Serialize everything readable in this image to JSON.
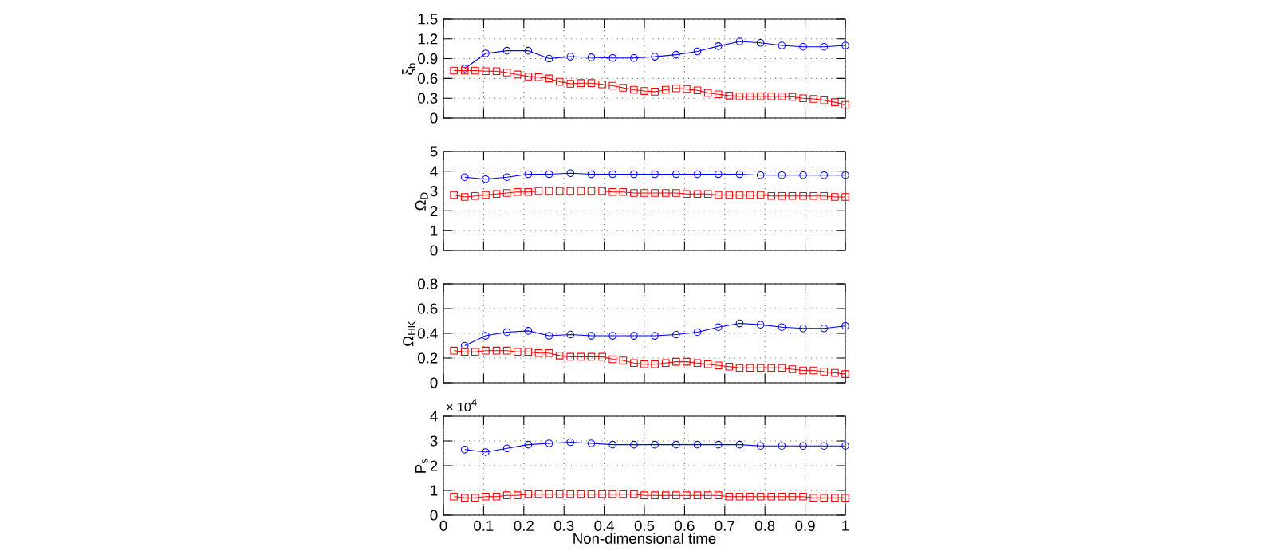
{
  "chart_data": [
    {
      "type": "line",
      "ylabel": "ξ$_{b}$",
      "xlim": [
        0,
        1
      ],
      "xticks": [
        0,
        0.1,
        0.2,
        0.3,
        0.4,
        0.5,
        0.6,
        0.7,
        0.8,
        0.9,
        1
      ],
      "ylim": [
        0,
        1.5
      ],
      "yticks": [
        0,
        0.3,
        0.6,
        0.9,
        1.2,
        1.5
      ],
      "grid": true,
      "tick_labels": "y",
      "line_style": "solid",
      "series": [
        {
          "color": "#0000ff",
          "marker": "circle",
          "x": [
            0.053,
            0.105,
            0.158,
            0.211,
            0.263,
            0.316,
            0.368,
            0.421,
            0.474,
            0.526,
            0.579,
            0.632,
            0.684,
            0.737,
            0.789,
            0.842,
            0.895,
            0.947,
            1
          ],
          "values": [
            0.75,
            0.98,
            1.02,
            1.02,
            0.9,
            0.93,
            0.92,
            0.91,
            0.91,
            0.93,
            0.96,
            1.01,
            1.09,
            1.16,
            1.14,
            1.1,
            1.08,
            1.08,
            1.1
          ]
        },
        {
          "color": "#ff0000",
          "marker": "square",
          "x": [
            0.026,
            0.053,
            0.079,
            0.105,
            0.132,
            0.158,
            0.184,
            0.211,
            0.237,
            0.263,
            0.289,
            0.316,
            0.342,
            0.368,
            0.395,
            0.421,
            0.447,
            0.474,
            0.5,
            0.526,
            0.553,
            0.579,
            0.605,
            0.632,
            0.658,
            0.684,
            0.711,
            0.737,
            0.763,
            0.789,
            0.816,
            0.842,
            0.868,
            0.895,
            0.921,
            0.947,
            0.974,
            1
          ],
          "values": [
            0.72,
            0.72,
            0.72,
            0.71,
            0.71,
            0.69,
            0.66,
            0.63,
            0.62,
            0.6,
            0.55,
            0.52,
            0.53,
            0.53,
            0.51,
            0.49,
            0.46,
            0.43,
            0.41,
            0.4,
            0.43,
            0.45,
            0.44,
            0.42,
            0.38,
            0.36,
            0.34,
            0.33,
            0.33,
            0.33,
            0.33,
            0.33,
            0.32,
            0.3,
            0.29,
            0.27,
            0.24,
            0.2
          ]
        }
      ]
    },
    {
      "type": "line",
      "ylabel": "Ω$_{D}$",
      "xlim": [
        0,
        1
      ],
      "xticks": [
        0,
        0.1,
        0.2,
        0.3,
        0.4,
        0.5,
        0.6,
        0.7,
        0.8,
        0.9,
        1
      ],
      "ylim": [
        0,
        5
      ],
      "yticks": [
        0,
        1,
        2,
        3,
        4,
        5
      ],
      "grid": true,
      "tick_labels": "y",
      "line_style": "solid",
      "series": [
        {
          "color": "#0000ff",
          "marker": "circle",
          "x": [
            0.053,
            0.105,
            0.158,
            0.211,
            0.263,
            0.316,
            0.368,
            0.421,
            0.474,
            0.526,
            0.579,
            0.632,
            0.684,
            0.737,
            0.789,
            0.842,
            0.895,
            0.947,
            1
          ],
          "values": [
            3.7,
            3.6,
            3.7,
            3.85,
            3.85,
            3.9,
            3.85,
            3.85,
            3.85,
            3.85,
            3.85,
            3.85,
            3.85,
            3.85,
            3.8,
            3.8,
            3.8,
            3.8,
            3.8
          ]
        },
        {
          "color": "#ff0000",
          "marker": "square",
          "x": [
            0.026,
            0.053,
            0.079,
            0.105,
            0.132,
            0.158,
            0.184,
            0.211,
            0.237,
            0.263,
            0.289,
            0.316,
            0.342,
            0.368,
            0.395,
            0.421,
            0.447,
            0.474,
            0.5,
            0.526,
            0.553,
            0.579,
            0.605,
            0.632,
            0.658,
            0.684,
            0.711,
            0.737,
            0.763,
            0.789,
            0.816,
            0.842,
            0.868,
            0.895,
            0.921,
            0.947,
            0.974,
            1
          ],
          "values": [
            2.8,
            2.7,
            2.75,
            2.8,
            2.85,
            2.9,
            2.95,
            2.95,
            3.0,
            3.0,
            3.0,
            3.0,
            3.0,
            3.0,
            3.0,
            2.95,
            2.95,
            2.9,
            2.9,
            2.9,
            2.9,
            2.9,
            2.85,
            2.85,
            2.85,
            2.8,
            2.8,
            2.8,
            2.8,
            2.8,
            2.75,
            2.75,
            2.75,
            2.75,
            2.75,
            2.75,
            2.7,
            2.7
          ]
        }
      ]
    },
    {
      "type": "line",
      "ylabel": "Ω$_{HK}$",
      "xlim": [
        0,
        1
      ],
      "xticks": [
        0,
        0.1,
        0.2,
        0.3,
        0.4,
        0.5,
        0.6,
        0.7,
        0.8,
        0.9,
        1
      ],
      "ylim": [
        0,
        0.8
      ],
      "yticks": [
        0,
        0.2,
        0.4,
        0.6,
        0.8
      ],
      "grid": true,
      "tick_labels": "y",
      "line_style": "solid",
      "series": [
        {
          "color": "#0000ff",
          "marker": "circle",
          "x": [
            0.053,
            0.105,
            0.158,
            0.211,
            0.263,
            0.316,
            0.368,
            0.421,
            0.474,
            0.526,
            0.579,
            0.632,
            0.684,
            0.737,
            0.789,
            0.842,
            0.895,
            0.947,
            1
          ],
          "values": [
            0.3,
            0.38,
            0.41,
            0.42,
            0.38,
            0.39,
            0.38,
            0.38,
            0.38,
            0.38,
            0.39,
            0.41,
            0.45,
            0.48,
            0.47,
            0.45,
            0.44,
            0.44,
            0.46
          ]
        },
        {
          "color": "#ff0000",
          "marker": "square",
          "x": [
            0.026,
            0.053,
            0.079,
            0.105,
            0.132,
            0.158,
            0.184,
            0.211,
            0.237,
            0.263,
            0.289,
            0.316,
            0.342,
            0.368,
            0.395,
            0.421,
            0.447,
            0.474,
            0.5,
            0.526,
            0.553,
            0.579,
            0.605,
            0.632,
            0.658,
            0.684,
            0.711,
            0.737,
            0.763,
            0.789,
            0.816,
            0.842,
            0.868,
            0.895,
            0.921,
            0.947,
            0.974,
            1
          ],
          "values": [
            0.26,
            0.25,
            0.25,
            0.26,
            0.26,
            0.26,
            0.25,
            0.25,
            0.24,
            0.24,
            0.22,
            0.21,
            0.21,
            0.21,
            0.21,
            0.19,
            0.18,
            0.16,
            0.15,
            0.15,
            0.16,
            0.17,
            0.17,
            0.16,
            0.15,
            0.14,
            0.13,
            0.12,
            0.12,
            0.12,
            0.12,
            0.12,
            0.11,
            0.1,
            0.1,
            0.09,
            0.08,
            0.07
          ]
        }
      ]
    },
    {
      "type": "line",
      "ylabel": "P$_{s}$",
      "xlabel": "Non-dimensional time",
      "annotations": [
        "× 10$^{4}$"
      ],
      "xlim": [
        0,
        1
      ],
      "xticks": [
        0,
        0.1,
        0.2,
        0.3,
        0.4,
        0.5,
        0.6,
        0.7,
        0.8,
        0.9,
        1
      ],
      "ylim": [
        0,
        4
      ],
      "yticks": [
        0,
        1,
        2,
        3,
        4
      ],
      "grid": true,
      "line_style": "solid",
      "series": [
        {
          "color": "#0000ff",
          "marker": "circle",
          "x": [
            0.053,
            0.105,
            0.158,
            0.211,
            0.263,
            0.316,
            0.368,
            0.421,
            0.474,
            0.526,
            0.579,
            0.632,
            0.684,
            0.737,
            0.789,
            0.842,
            0.895,
            0.947,
            1
          ],
          "values": [
            2.65,
            2.55,
            2.7,
            2.85,
            2.9,
            2.95,
            2.9,
            2.85,
            2.85,
            2.85,
            2.85,
            2.85,
            2.85,
            2.85,
            2.8,
            2.8,
            2.8,
            2.8,
            2.8
          ]
        },
        {
          "color": "#ff0000",
          "marker": "square",
          "x": [
            0.026,
            0.053,
            0.079,
            0.105,
            0.132,
            0.158,
            0.184,
            0.211,
            0.237,
            0.263,
            0.289,
            0.316,
            0.342,
            0.368,
            0.395,
            0.421,
            0.447,
            0.474,
            0.5,
            0.526,
            0.553,
            0.579,
            0.605,
            0.632,
            0.658,
            0.684,
            0.711,
            0.737,
            0.763,
            0.789,
            0.816,
            0.842,
            0.868,
            0.895,
            0.921,
            0.947,
            0.974,
            1
          ],
          "values": [
            0.75,
            0.7,
            0.7,
            0.75,
            0.75,
            0.8,
            0.8,
            0.85,
            0.85,
            0.85,
            0.85,
            0.85,
            0.85,
            0.85,
            0.85,
            0.85,
            0.85,
            0.85,
            0.8,
            0.8,
            0.8,
            0.8,
            0.8,
            0.8,
            0.8,
            0.8,
            0.75,
            0.75,
            0.75,
            0.75,
            0.75,
            0.75,
            0.75,
            0.75,
            0.7,
            0.7,
            0.7,
            0.7
          ]
        }
      ]
    }
  ]
}
